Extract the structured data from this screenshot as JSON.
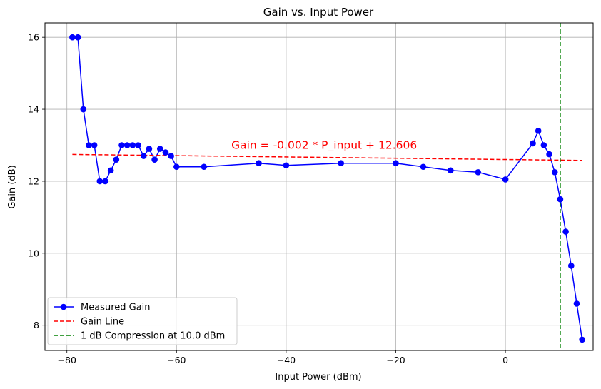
{
  "chart_data": {
    "type": "line",
    "title": "Gain vs. Input Power",
    "xlabel": "Input Power (dBm)",
    "ylabel": "Gain (dB)",
    "xlim": [
      -84,
      16
    ],
    "ylim": [
      7.3,
      16.4
    ],
    "xticks": [
      -80,
      -60,
      -40,
      -20,
      0
    ],
    "xtick_labels": [
      "−80",
      "−60",
      "−40",
      "−20",
      "0"
    ],
    "yticks": [
      8,
      10,
      12,
      14,
      16
    ],
    "ytick_labels": [
      "8",
      "10",
      "12",
      "14",
      "16"
    ],
    "grid": true,
    "legend_position": "lower-left",
    "series": [
      {
        "name": "Measured Gain",
        "style": "line-with-markers",
        "color": "#0000ff",
        "x": [
          -79,
          -78,
          -77,
          -76,
          -75,
          -74,
          -73,
          -72,
          -71,
          -70,
          -69,
          -68,
          -67,
          -66,
          -65,
          -64,
          -63,
          -62,
          -61,
          -60,
          -55,
          -45,
          -40,
          -30,
          -20,
          -15,
          -10,
          -5,
          0,
          5,
          6,
          7,
          8,
          9,
          10,
          11,
          12,
          13,
          14
        ],
        "y": [
          16.0,
          16.0,
          14.0,
          13.0,
          13.0,
          12.0,
          12.0,
          12.3,
          12.6,
          13.0,
          13.0,
          13.0,
          13.0,
          12.7,
          12.9,
          12.6,
          12.9,
          12.8,
          12.7,
          12.4,
          12.4,
          12.5,
          12.44,
          12.5,
          12.5,
          12.4,
          12.3,
          12.25,
          12.05,
          13.05,
          13.4,
          13.0,
          12.75,
          12.25,
          11.5,
          10.6,
          9.65,
          8.6,
          7.6
        ]
      },
      {
        "name": "Gain Line",
        "style": "dashed",
        "color": "#ff0000",
        "x": [
          -79,
          14
        ],
        "y": [
          12.744,
          12.578
        ]
      },
      {
        "name": "1 dB Compression at 10.0 dBm",
        "style": "dashed-vertical",
        "color": "#008000",
        "x_value": 10.0
      }
    ],
    "annotation": {
      "text": "Gain = -0.002 * P_input + 12.606",
      "x": -50,
      "y": 13.0,
      "color": "#ff0000"
    }
  }
}
